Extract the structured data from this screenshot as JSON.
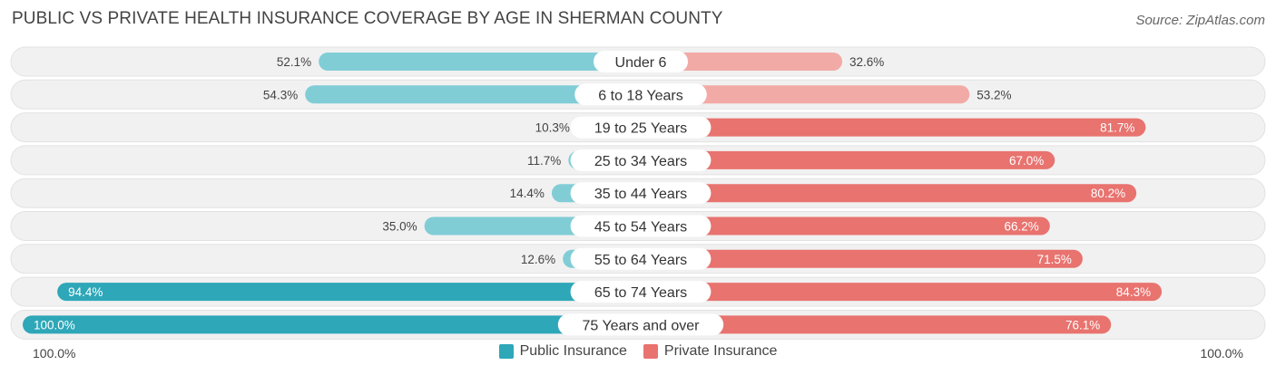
{
  "title": "PUBLIC VS PRIVATE HEALTH INSURANCE COVERAGE BY AGE IN SHERMAN COUNTY",
  "source": "Source: ZipAtlas.com",
  "colors": {
    "public": "#2ea7b8",
    "public_light": "#80cdd6",
    "private": "#e8736f",
    "private_light": "#f2aaa6",
    "track": "#f1f1f1"
  },
  "legend": {
    "public_label": "Public Insurance",
    "private_label": "Private Insurance"
  },
  "axis": {
    "left_label": "100.0%",
    "right_label": "100.0%"
  },
  "chart_data": {
    "type": "bar",
    "orientation": "horizontal-diverging",
    "categories": [
      "Under 6",
      "6 to 18 Years",
      "19 to 25 Years",
      "25 to 34 Years",
      "35 to 44 Years",
      "45 to 54 Years",
      "55 to 64 Years",
      "65 to 74 Years",
      "75 Years and over"
    ],
    "series": [
      {
        "name": "Public Insurance",
        "values": [
          52.1,
          54.3,
          10.3,
          11.7,
          14.4,
          35.0,
          12.6,
          94.4,
          100.0
        ],
        "labels": [
          "52.1%",
          "54.3%",
          "10.3%",
          "11.7%",
          "14.4%",
          "35.0%",
          "12.6%",
          "94.4%",
          "100.0%"
        ]
      },
      {
        "name": "Private Insurance",
        "values": [
          32.6,
          53.2,
          81.7,
          67.0,
          80.2,
          66.2,
          71.5,
          84.3,
          76.1
        ],
        "labels": [
          "32.6%",
          "53.2%",
          "81.7%",
          "67.0%",
          "80.2%",
          "66.2%",
          "71.5%",
          "84.3%",
          "76.1%"
        ]
      }
    ],
    "xlim": [
      -100,
      100
    ],
    "x_tick_labels": [
      "100.0%",
      "100.0%"
    ],
    "legend_position": "bottom-center"
  }
}
